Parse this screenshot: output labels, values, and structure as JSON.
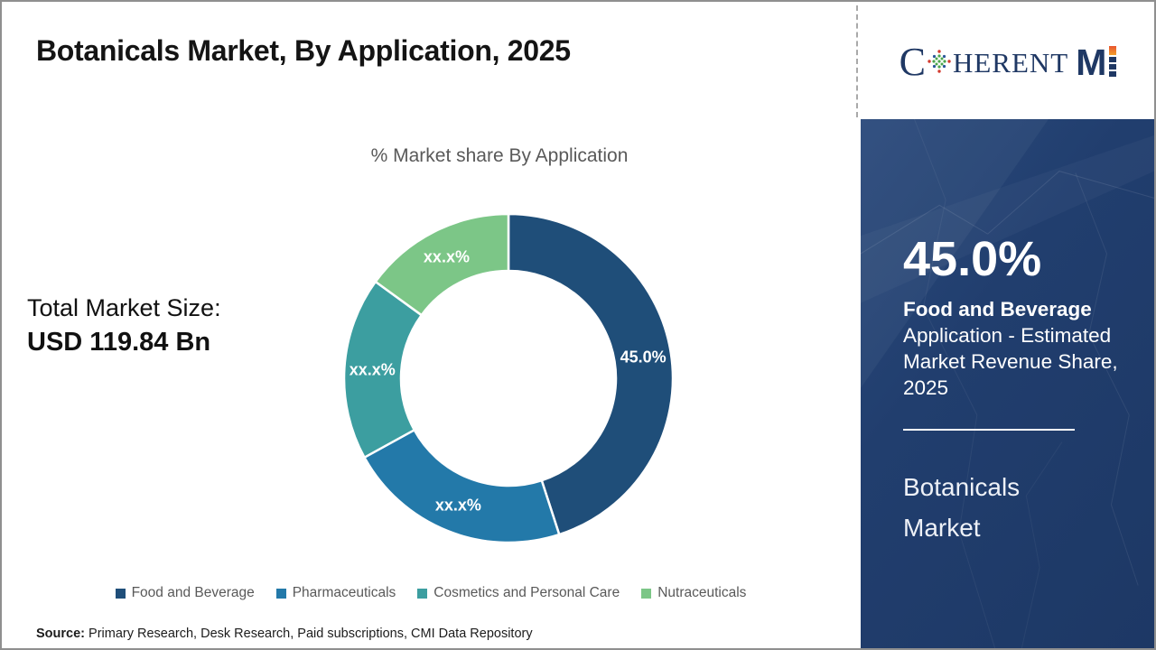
{
  "header": {
    "title": "Botanicals Market, By Application, 2025"
  },
  "logo": {
    "part_c": "C",
    "part_herent": "HERENT",
    "part_m": "M",
    "navy": "#1F3864",
    "orange": "#ED7D31"
  },
  "chart": {
    "title": "% Market share By Application"
  },
  "total_market": {
    "label": "Total Market Size:",
    "value": "USD 119.84 Bn"
  },
  "chart_data": {
    "type": "pie",
    "subtype": "donut",
    "title": "% Market share By Application",
    "categories": [
      "Food and Beverage",
      "Pharmaceuticals",
      "Cosmetics and Personal Care",
      "Nutraceuticals"
    ],
    "values": [
      45.0,
      22.0,
      18.0,
      15.0
    ],
    "labels": [
      "45.0%",
      "xx.x%",
      "xx.x%",
      "xx.x%"
    ],
    "colors": [
      "#1F4E79",
      "#2379A9",
      "#3C9EA0",
      "#7CC687"
    ],
    "start_angle_deg": 0,
    "direction": "clockwise",
    "inner_radius_ratio": 0.65,
    "legend_position": "bottom"
  },
  "side_panel": {
    "headline_value": "45.0%",
    "headline_bold": "Food and Beverage",
    "headline_rest": " Application - Estimated Market Revenue Share, 2025",
    "market_name": "Botanicals Market",
    "bg_color": "#1F3C6B"
  },
  "source": {
    "label": "Source:",
    "text": " Primary Research, Desk Research, Paid subscriptions, CMI Data Repository"
  }
}
